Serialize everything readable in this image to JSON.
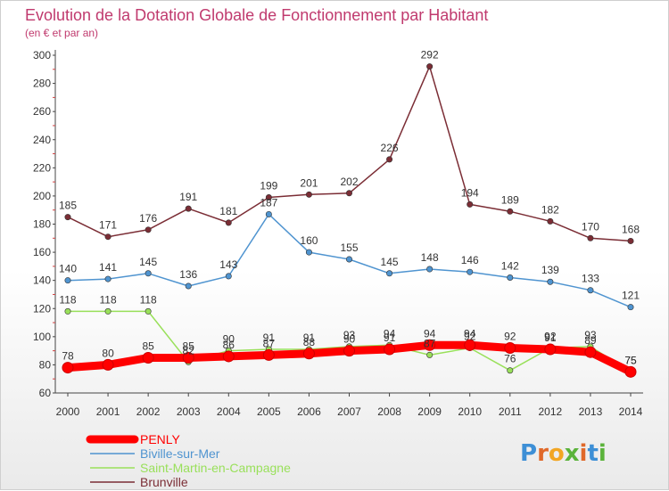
{
  "chart_data": {
    "type": "line",
    "title": "Evolution de la Dotation Globale de Fonctionnement par Habitant",
    "subtitle": "(en € et par an)",
    "x": [
      2000,
      2001,
      2002,
      2003,
      2004,
      2005,
      2006,
      2007,
      2008,
      2009,
      2010,
      2011,
      2012,
      2013,
      2014
    ],
    "ylim": [
      60,
      300
    ],
    "yticks": [
      60,
      80,
      100,
      120,
      140,
      160,
      180,
      200,
      220,
      240,
      260,
      280,
      300
    ],
    "grid": false,
    "legend": "bottom-left",
    "series": [
      {
        "name": "PENLY",
        "color": "#ff0000",
        "values": [
          78,
          80,
          85,
          85,
          86,
          87,
          88,
          90,
          91,
          94,
          94,
          92,
          91,
          89,
          75
        ]
      },
      {
        "name": "Biville-sur-Mer",
        "color": "#4f94d0",
        "values": [
          140,
          141,
          145,
          136,
          143,
          187,
          160,
          155,
          145,
          148,
          146,
          142,
          139,
          133,
          121
        ]
      },
      {
        "name": "Saint-Martin-en-Campagne",
        "color": "#99e05a",
        "values": [
          118,
          118,
          118,
          82,
          90,
          91,
          91,
          93,
          94,
          87,
          92,
          76,
          92,
          93,
          75
        ]
      },
      {
        "name": "Brunville",
        "color": "#7b2d35",
        "values": [
          185,
          171,
          176,
          191,
          181,
          199,
          201,
          202,
          226,
          292,
          194,
          189,
          182,
          170,
          168
        ]
      }
    ]
  },
  "logo": {
    "text": "Proxiti"
  }
}
